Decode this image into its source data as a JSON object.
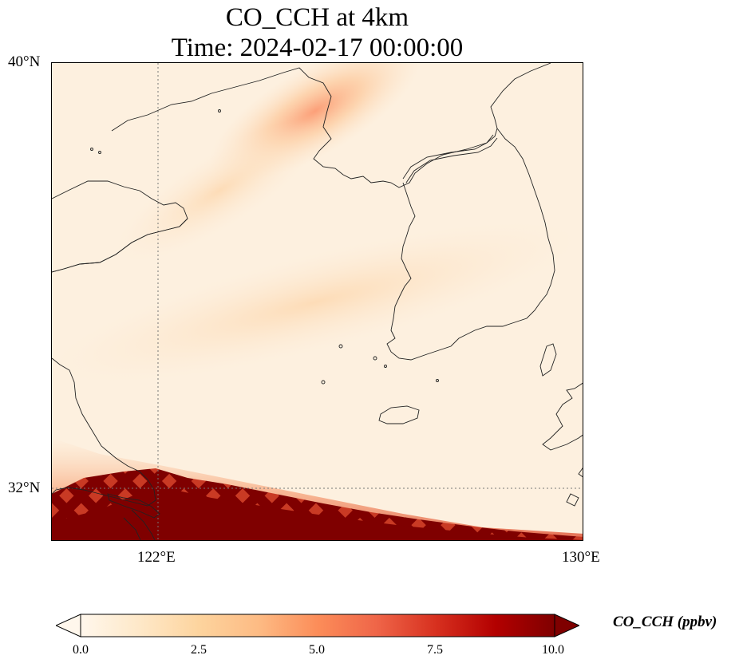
{
  "title": {
    "line1": "CO_CCH at 4km",
    "line2": "Time: 2024-02-17 00:00:00"
  },
  "map": {
    "lat_labels": [
      "40°N",
      "32°N"
    ],
    "lon_labels": [
      "122°E",
      "130°E"
    ],
    "lon_range": [
      120,
      130
    ],
    "lat_range": [
      31,
      40
    ],
    "gridlines": {
      "lon": 122,
      "lat": 32,
      "style": "dotted"
    }
  },
  "colorbar": {
    "label": "CO_CCH (ppbv)",
    "colormap": "OrRd",
    "ticks": [
      "0.0",
      "2.5",
      "5.0",
      "7.5",
      "10.0"
    ],
    "range": [
      0,
      10
    ],
    "extend": "both",
    "colors": [
      "#fff7ec",
      "#fee8c8",
      "#fdd49e",
      "#fdbb84",
      "#fc8d59",
      "#ef6548",
      "#d7301f",
      "#b30000",
      "#7f0000"
    ]
  }
}
